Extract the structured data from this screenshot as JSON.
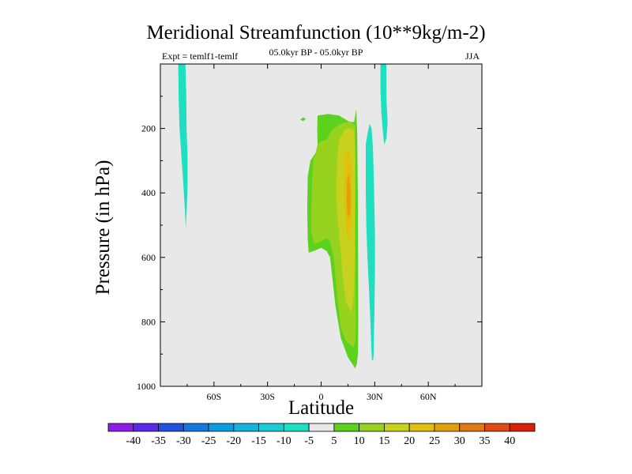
{
  "chart_data": {
    "type": "heatmap",
    "title": "Meridional Streamfunction (10**9kg/m-2)",
    "subtitle_left": "Expt = temlf1-temlf",
    "subtitle_center": "05.0kyr BP - 05.0kyr BP",
    "subtitle_right": "JJA",
    "xlabel": "Latitude",
    "ylabel": "Pressure (in hPa)",
    "xlim": [
      -90,
      90
    ],
    "ylim": [
      1000,
      0
    ],
    "x_ticks": [
      {
        "value": -60,
        "label": "60S"
      },
      {
        "value": -30,
        "label": "30S"
      },
      {
        "value": 0,
        "label": "0"
      },
      {
        "value": 30,
        "label": "30N"
      },
      {
        "value": 60,
        "label": "60N"
      }
    ],
    "y_ticks": [
      {
        "value": 200,
        "label": "200"
      },
      {
        "value": 400,
        "label": "400"
      },
      {
        "value": 600,
        "label": "600"
      },
      {
        "value": 800,
        "label": "800"
      },
      {
        "value": 1000,
        "label": "1000"
      }
    ],
    "contour_levels": [
      -40,
      -35,
      -30,
      -25,
      -20,
      -15,
      -10,
      -5,
      5,
      10,
      15,
      20,
      25,
      30,
      35,
      40
    ],
    "colorbar_labels": [
      "-40",
      "-35",
      "-30",
      "-25",
      "-20",
      "-15",
      "-10",
      "-5",
      "5",
      "10",
      "15",
      "20",
      "25",
      "30",
      "35",
      "40"
    ],
    "colorbar_colors": [
      "#8c1ee8",
      "#5a28e8",
      "#2450e0",
      "#1478e0",
      "#0c9ce0",
      "#14b4e0",
      "#1ecad4",
      "#1ee0c0",
      "#e8e8e8",
      "#5ad21e",
      "#96d21e",
      "#c8d21e",
      "#e0c00c",
      "#e0a00c",
      "#e07814",
      "#e04a14",
      "#d8200c"
    ],
    "background_color": "#e8e8e8",
    "regions": [
      {
        "name": "negative-column-south",
        "level": "-5",
        "color": "#1ee0c0",
        "points": [
          [
            -80,
            0
          ],
          [
            -76,
            0
          ],
          [
            -75.5,
            100
          ],
          [
            -75.3,
            200
          ],
          [
            -74.8,
            290
          ],
          [
            -74.8,
            380
          ],
          [
            -75.3,
            460
          ],
          [
            -75.8,
            510
          ],
          [
            -76.3,
            450
          ],
          [
            -77.3,
            360
          ],
          [
            -78.3,
            280
          ],
          [
            -79.3,
            200
          ],
          [
            -79.8,
            100
          ]
        ]
      },
      {
        "name": "negative-column-north-upper",
        "level": "-5",
        "color": "#1ee0c0",
        "points": [
          [
            33.2,
            0
          ],
          [
            36.5,
            0
          ],
          [
            36.5,
            100
          ],
          [
            37.2,
            180
          ],
          [
            36.6,
            230
          ],
          [
            35.3,
            250
          ],
          [
            34.4,
            200
          ],
          [
            33.7,
            150
          ],
          [
            33.2,
            80
          ]
        ]
      },
      {
        "name": "negative-column-north-main",
        "level": "-5",
        "color": "#1ee0c0",
        "points": [
          [
            25,
            250
          ],
          [
            26,
            215
          ],
          [
            27.2,
            185
          ],
          [
            28.2,
            200
          ],
          [
            29,
            260
          ],
          [
            29.6,
            380
          ],
          [
            30.1,
            520
          ],
          [
            30.1,
            650
          ],
          [
            29.8,
            780
          ],
          [
            29.5,
            860
          ],
          [
            29.4,
            900
          ],
          [
            29.1,
            920
          ],
          [
            28.5,
            920
          ],
          [
            28.1,
            880
          ],
          [
            27.6,
            800
          ],
          [
            26.8,
            700
          ],
          [
            25.9,
            600
          ],
          [
            25.3,
            500
          ],
          [
            25,
            400
          ]
        ]
      },
      {
        "name": "positive-region-5",
        "level": "5",
        "color": "#5ad21e",
        "points": [
          [
            -2,
            160
          ],
          [
            4,
            155
          ],
          [
            10,
            160
          ],
          [
            16,
            180
          ],
          [
            18.5,
            180
          ],
          [
            19.7,
            140
          ],
          [
            20.2,
            220
          ],
          [
            20.5,
            400
          ],
          [
            20.7,
            600
          ],
          [
            20.8,
            800
          ],
          [
            20.6,
            900
          ],
          [
            20,
            930
          ],
          [
            19,
            945
          ],
          [
            18,
            935
          ],
          [
            15,
            910
          ],
          [
            11,
            850
          ],
          [
            8,
            750
          ],
          [
            6,
            650
          ],
          [
            5,
            600
          ],
          [
            3,
            580
          ],
          [
            0,
            570
          ],
          [
            -4,
            580
          ],
          [
            -7,
            585
          ],
          [
            -7.5,
            540
          ],
          [
            -7.8,
            450
          ],
          [
            -7.5,
            350
          ],
          [
            -6,
            300
          ],
          [
            -3,
            275
          ],
          [
            -2,
            250
          ],
          [
            -2.2,
            200
          ]
        ]
      },
      {
        "name": "positive-region-5-dot",
        "level": "5",
        "color": "#5ad21e",
        "points": [
          [
            -11.7,
            172
          ],
          [
            -10,
            166
          ],
          [
            -8.5,
            170
          ],
          [
            -10,
            177
          ]
        ]
      },
      {
        "name": "positive-region-10",
        "level": "10",
        "color": "#96d21e",
        "points": [
          [
            3,
            235
          ],
          [
            6,
            205
          ],
          [
            11,
            185
          ],
          [
            16,
            178
          ],
          [
            19,
            190
          ],
          [
            19.2,
            280
          ],
          [
            19.1,
            400
          ],
          [
            19.2,
            550
          ],
          [
            19.2,
            700
          ],
          [
            19.5,
            800
          ],
          [
            19.3,
            860
          ],
          [
            18,
            880
          ],
          [
            14,
            860
          ],
          [
            11,
            820
          ],
          [
            9,
            720
          ],
          [
            7,
            600
          ],
          [
            5,
            550
          ],
          [
            3,
            540
          ],
          [
            0,
            550
          ],
          [
            -4,
            560
          ],
          [
            -5.5,
            520
          ],
          [
            -5.5,
            450
          ],
          [
            -5,
            350
          ],
          [
            -4.3,
            300
          ],
          [
            -2.5,
            265
          ],
          [
            -2,
            250
          ],
          [
            0,
            240
          ]
        ]
      },
      {
        "name": "positive-region-15",
        "level": "15",
        "color": "#c8d21e",
        "points": [
          [
            10,
            235
          ],
          [
            13,
            205
          ],
          [
            16,
            198
          ],
          [
            18.5,
            205
          ],
          [
            19,
            300
          ],
          [
            19,
            450
          ],
          [
            18.8,
            600
          ],
          [
            18.5,
            700
          ],
          [
            17,
            770
          ],
          [
            14,
            740
          ],
          [
            12,
            660
          ],
          [
            11,
            580
          ],
          [
            10,
            520
          ],
          [
            8.8,
            450
          ],
          [
            8.5,
            380
          ],
          [
            9,
            300
          ]
        ]
      },
      {
        "name": "positive-region-20",
        "level": "20",
        "color": "#e0c00c",
        "points": [
          [
            13,
            290
          ],
          [
            15.5,
            260
          ],
          [
            17.2,
            320
          ],
          [
            17.5,
            400
          ],
          [
            17.3,
            470
          ],
          [
            16.5,
            520
          ],
          [
            15.5,
            550
          ],
          [
            14.2,
            520
          ],
          [
            13.3,
            460
          ],
          [
            12.8,
            380
          ]
        ]
      },
      {
        "name": "positive-region-25",
        "level": "25",
        "color": "#e0a00c",
        "points": [
          [
            14.5,
            360
          ],
          [
            15.5,
            340
          ],
          [
            16.3,
            380
          ],
          [
            16.5,
            420
          ],
          [
            16.3,
            460
          ],
          [
            15.5,
            480
          ],
          [
            14.5,
            460
          ],
          [
            14.2,
            410
          ]
        ]
      }
    ]
  }
}
